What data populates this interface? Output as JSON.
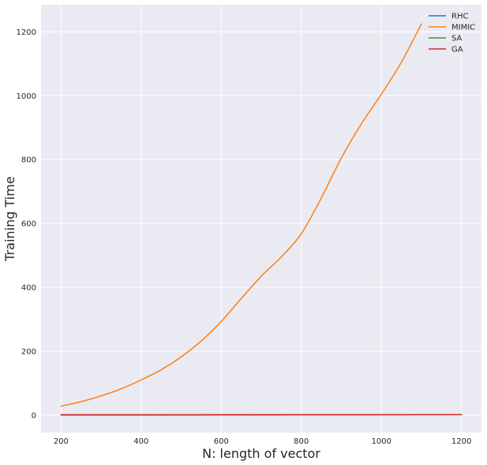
{
  "chart_data": {
    "type": "line",
    "title": "",
    "xlabel": "N: length of vector",
    "ylabel": "Training Time",
    "xlim": [
      150,
      1250
    ],
    "ylim": [
      -55,
      1285
    ],
    "xticks": [
      200,
      400,
      600,
      800,
      1000,
      1200
    ],
    "yticks": [
      0,
      200,
      400,
      600,
      800,
      1000,
      1200
    ],
    "grid": true,
    "legend_position": "top-right",
    "series": [
      {
        "name": "RHC",
        "color": "#1f77b4",
        "x": [
          200,
          300,
          400,
          500,
          600,
          700,
          800,
          900,
          1000,
          1100,
          1200
        ],
        "y": [
          0.2,
          0.3,
          0.4,
          0.5,
          0.6,
          0.7,
          0.8,
          0.9,
          1.0,
          1.1,
          1.2
        ]
      },
      {
        "name": "MIMIC",
        "color": "#ff7f0e",
        "x": [
          200,
          250,
          300,
          350,
          400,
          450,
          500,
          550,
          600,
          650,
          700,
          750,
          800,
          850,
          900,
          950,
          1000,
          1050,
          1100
        ],
        "y": [
          28,
          42,
          60,
          82,
          110,
          142,
          182,
          232,
          293,
          365,
          435,
          495,
          568,
          680,
          805,
          912,
          1005,
          1105,
          1225
        ]
      },
      {
        "name": "SA",
        "color": "#2ca02c",
        "x": [
          200,
          300,
          400,
          500,
          600,
          700,
          800,
          900,
          1000,
          1100,
          1200
        ],
        "y": [
          0.3,
          0.4,
          0.5,
          0.6,
          0.7,
          0.8,
          0.9,
          1.0,
          1.1,
          1.2,
          1.3
        ]
      },
      {
        "name": "GA",
        "color": "#d62728",
        "x": [
          200,
          300,
          400,
          500,
          600,
          700,
          800,
          900,
          1000,
          1100,
          1200
        ],
        "y": [
          0.8,
          0.9,
          1.0,
          1.0,
          1.1,
          1.1,
          1.2,
          1.2,
          1.3,
          1.3,
          1.4
        ]
      }
    ]
  }
}
